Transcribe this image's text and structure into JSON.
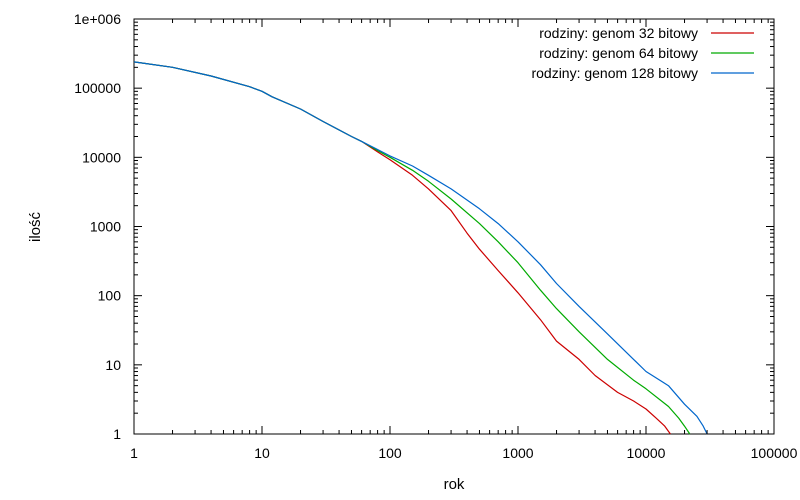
{
  "chart_data": {
    "type": "line",
    "title": "",
    "xlabel": "rok",
    "ylabel": "ilość",
    "xscale": "log",
    "yscale": "log",
    "xlim": [
      1,
      100000
    ],
    "ylim": [
      1,
      1000000
    ],
    "x_ticks": [
      {
        "value": 1,
        "label": "1"
      },
      {
        "value": 10,
        "label": "10"
      },
      {
        "value": 100,
        "label": "100"
      },
      {
        "value": 1000,
        "label": "1000"
      },
      {
        "value": 10000,
        "label": "10000"
      },
      {
        "value": 100000,
        "label": "100000"
      }
    ],
    "y_ticks": [
      {
        "value": 1,
        "label": "1"
      },
      {
        "value": 10,
        "label": "10"
      },
      {
        "value": 100,
        "label": "100"
      },
      {
        "value": 1000,
        "label": "1000"
      },
      {
        "value": 10000,
        "label": "10000"
      },
      {
        "value": 100000,
        "label": "100000"
      },
      {
        "value": 1000000,
        "label": "1e+006"
      }
    ],
    "grid": false,
    "legend_position": "top-right",
    "series": [
      {
        "name": "rodziny: genom 32 bitowy",
        "color": "#cc0000",
        "points": [
          [
            1,
            240000
          ],
          [
            2,
            200000
          ],
          [
            4,
            150000
          ],
          [
            8,
            105000
          ],
          [
            10,
            90000
          ],
          [
            12,
            75000
          ],
          [
            20,
            50000
          ],
          [
            30,
            33000
          ],
          [
            50,
            20000
          ],
          [
            60,
            17000
          ],
          [
            80,
            12000
          ],
          [
            100,
            9200
          ],
          [
            150,
            5500
          ],
          [
            200,
            3500
          ],
          [
            300,
            1700
          ],
          [
            400,
            800
          ],
          [
            500,
            470
          ],
          [
            700,
            230
          ],
          [
            1000,
            110
          ],
          [
            1500,
            45
          ],
          [
            2000,
            22
          ],
          [
            3000,
            12
          ],
          [
            4000,
            7
          ],
          [
            6000,
            4
          ],
          [
            8000,
            3
          ],
          [
            10000,
            2.3
          ],
          [
            12000,
            1.7
          ],
          [
            14000,
            1.3
          ],
          [
            15500,
            1
          ]
        ]
      },
      {
        "name": "rodziny: genom 64 bitowy",
        "color": "#00aa00",
        "points": [
          [
            1,
            240000
          ],
          [
            2,
            200000
          ],
          [
            4,
            150000
          ],
          [
            8,
            105000
          ],
          [
            10,
            90000
          ],
          [
            12,
            75000
          ],
          [
            20,
            50000
          ],
          [
            30,
            33000
          ],
          [
            50,
            20000
          ],
          [
            60,
            17000
          ],
          [
            80,
            12500
          ],
          [
            100,
            10000
          ],
          [
            150,
            6500
          ],
          [
            200,
            4500
          ],
          [
            300,
            2500
          ],
          [
            500,
            1100
          ],
          [
            700,
            600
          ],
          [
            1000,
            300
          ],
          [
            1500,
            120
          ],
          [
            2000,
            65
          ],
          [
            3000,
            30
          ],
          [
            5000,
            12
          ],
          [
            8000,
            6
          ],
          [
            10000,
            4.5
          ],
          [
            15000,
            2.5
          ],
          [
            18000,
            1.7
          ],
          [
            20000,
            1.3
          ],
          [
            22000,
            1
          ]
        ]
      },
      {
        "name": "rodziny: genom 128 bitowy",
        "color": "#0066cc",
        "points": [
          [
            1,
            240000
          ],
          [
            2,
            200000
          ],
          [
            4,
            150000
          ],
          [
            8,
            105000
          ],
          [
            10,
            90000
          ],
          [
            12,
            75000
          ],
          [
            20,
            50000
          ],
          [
            30,
            33000
          ],
          [
            50,
            20000
          ],
          [
            60,
            17000
          ],
          [
            80,
            13000
          ],
          [
            100,
            10500
          ],
          [
            150,
            7500
          ],
          [
            200,
            5500
          ],
          [
            300,
            3500
          ],
          [
            500,
            1800
          ],
          [
            700,
            1100
          ],
          [
            1000,
            600
          ],
          [
            1500,
            280
          ],
          [
            2000,
            150
          ],
          [
            3000,
            70
          ],
          [
            5000,
            28
          ],
          [
            8000,
            12
          ],
          [
            10000,
            8
          ],
          [
            15000,
            5
          ],
          [
            20000,
            2.7
          ],
          [
            25000,
            1.8
          ],
          [
            28000,
            1.3
          ],
          [
            30000,
            1
          ]
        ]
      }
    ]
  }
}
